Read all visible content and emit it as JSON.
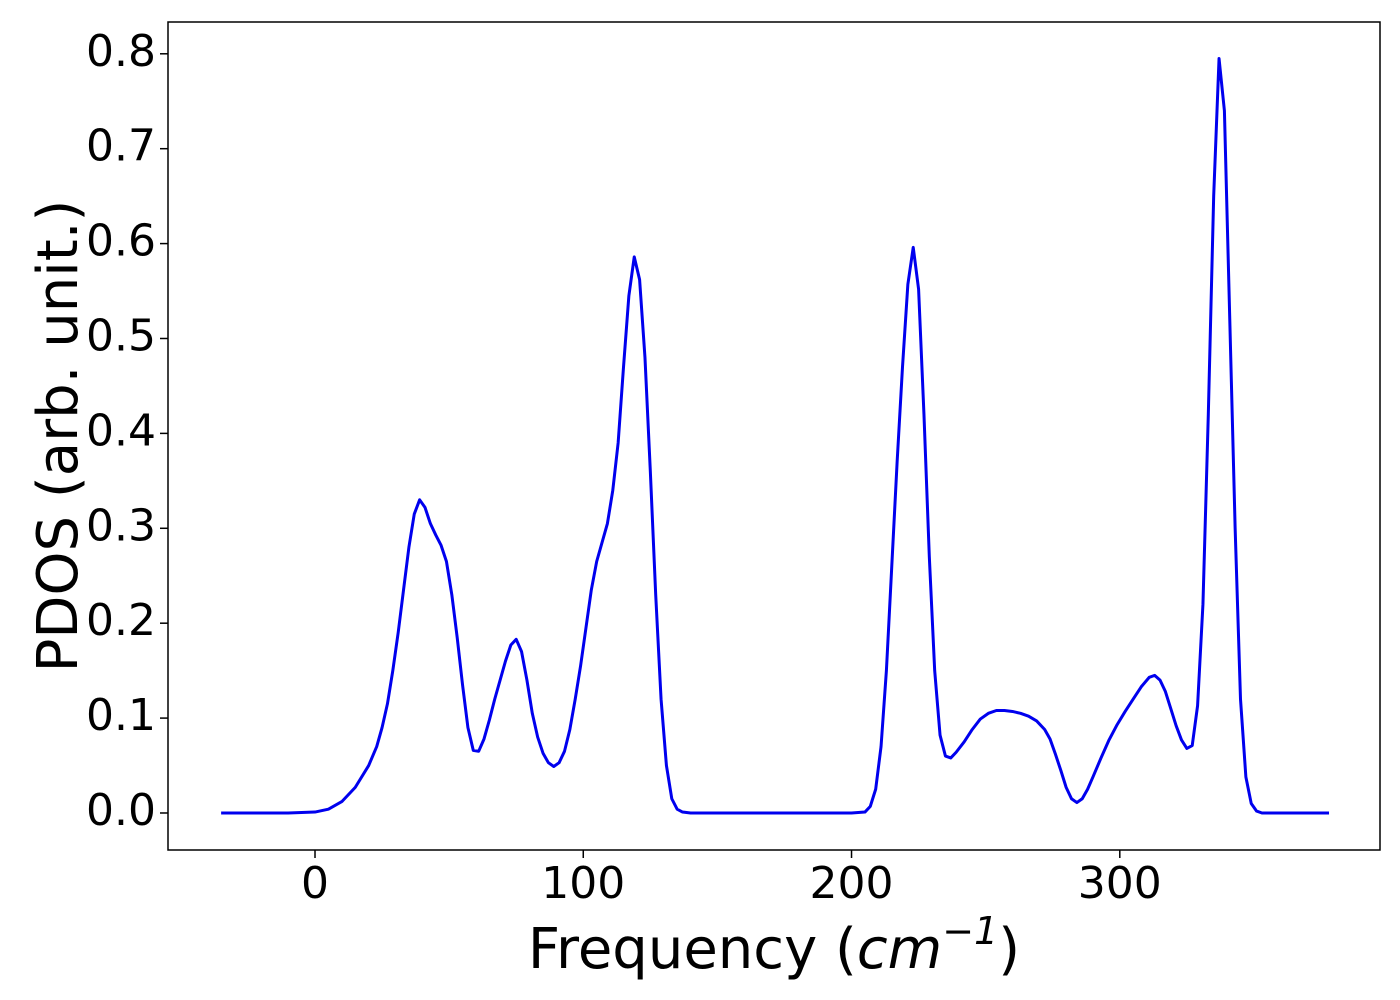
{
  "chart_data": {
    "type": "line",
    "xlabel": [
      "Frequency (",
      "cm",
      "−1",
      ")"
    ],
    "ylabel": "PDOS (arb. unit.)",
    "color": "#0000ee",
    "xlim": [
      -54.8,
      397
    ],
    "ylim": [
      -0.039,
      0.8335
    ],
    "xticks": [
      0,
      100,
      200,
      300
    ],
    "yticks": [
      {
        "value": 0,
        "label": "0.0"
      },
      0.1,
      0.2,
      0.3,
      0.4,
      0.5,
      0.6,
      0.7,
      0.8
    ],
    "x": [
      -35,
      -20,
      -10,
      0,
      5,
      10,
      15,
      20,
      23,
      25,
      27,
      29,
      31,
      33,
      35,
      37,
      39,
      41,
      43,
      45,
      47,
      49,
      51,
      53,
      55,
      57,
      59,
      61,
      63,
      65,
      67,
      69,
      71,
      73,
      75,
      77,
      79,
      81,
      83,
      85,
      87,
      89,
      91,
      93,
      95,
      97,
      99,
      101,
      103,
      105,
      107,
      109,
      111,
      113,
      115,
      117,
      119,
      121,
      123,
      125,
      127,
      129,
      131,
      133,
      135,
      137,
      140,
      200,
      205,
      207,
      209,
      211,
      213,
      215,
      217,
      219,
      221,
      223,
      225,
      227,
      229,
      231,
      233,
      235,
      237,
      239,
      242,
      245,
      248,
      251,
      254,
      257,
      260,
      263,
      266,
      269,
      272,
      274,
      276,
      278,
      280,
      282,
      284,
      286,
      288,
      290,
      293,
      296,
      299,
      302,
      305,
      308,
      311,
      313,
      315,
      317,
      319,
      321,
      323,
      325,
      327,
      329,
      331,
      333,
      335,
      337,
      339,
      341,
      343,
      345,
      347,
      349,
      351,
      353,
      378
    ],
    "values": [
      0,
      0,
      0,
      0.001,
      0.004,
      0.012,
      0.027,
      0.05,
      0.07,
      0.09,
      0.115,
      0.15,
      0.19,
      0.235,
      0.28,
      0.315,
      0.33,
      0.322,
      0.305,
      0.293,
      0.282,
      0.265,
      0.23,
      0.185,
      0.135,
      0.09,
      0.066,
      0.065,
      0.078,
      0.098,
      0.12,
      0.14,
      0.16,
      0.177,
      0.183,
      0.17,
      0.14,
      0.105,
      0.08,
      0.063,
      0.053,
      0.049,
      0.053,
      0.065,
      0.088,
      0.12,
      0.155,
      0.195,
      0.235,
      0.265,
      0.285,
      0.305,
      0.34,
      0.39,
      0.47,
      0.545,
      0.586,
      0.562,
      0.48,
      0.36,
      0.23,
      0.12,
      0.05,
      0.015,
      0.004,
      0.001,
      0,
      0,
      0.001,
      0.007,
      0.025,
      0.07,
      0.15,
      0.26,
      0.37,
      0.47,
      0.557,
      0.596,
      0.552,
      0.42,
      0.27,
      0.15,
      0.082,
      0.06,
      0.058,
      0.064,
      0.075,
      0.088,
      0.099,
      0.105,
      0.108,
      0.108,
      0.107,
      0.105,
      0.102,
      0.097,
      0.088,
      0.078,
      0.062,
      0.045,
      0.027,
      0.015,
      0.011,
      0.015,
      0.025,
      0.038,
      0.058,
      0.077,
      0.093,
      0.107,
      0.12,
      0.133,
      0.143,
      0.145,
      0.14,
      0.128,
      0.11,
      0.092,
      0.077,
      0.068,
      0.071,
      0.113,
      0.22,
      0.42,
      0.65,
      0.795,
      0.74,
      0.52,
      0.3,
      0.12,
      0.038,
      0.01,
      0.002,
      0,
      0
    ]
  }
}
